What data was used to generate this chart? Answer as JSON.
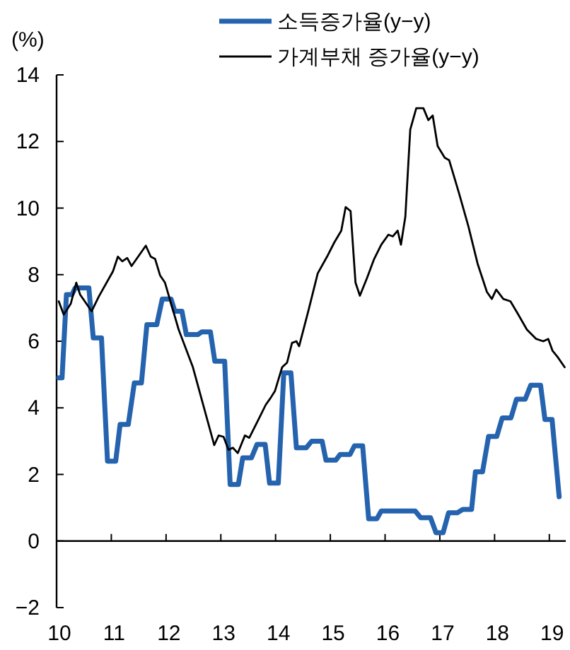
{
  "chart_data": {
    "type": "line",
    "ylabel": "(%)",
    "xlim": [
      10,
      19.3
    ],
    "xticks": [
      10,
      11,
      12,
      13,
      14,
      15,
      16,
      17,
      18,
      19
    ],
    "ylim": [
      -2,
      14
    ],
    "yticks": [
      -2,
      0,
      2,
      4,
      6,
      8,
      10,
      12,
      14
    ],
    "legend": "top",
    "series": [
      {
        "name": "소득증가율(y−y)",
        "color": "#2563ae",
        "x": [
          10.04,
          10.1,
          10.18,
          10.28,
          10.34,
          10.59,
          10.67,
          10.82,
          10.93,
          11.08,
          11.16,
          11.31,
          11.42,
          11.55,
          11.65,
          11.83,
          11.93,
          12.09,
          12.16,
          12.29,
          12.37,
          12.58,
          12.65,
          12.81,
          12.89,
          13.07,
          13.17,
          13.32,
          13.4,
          13.56,
          13.66,
          13.81,
          13.89,
          14.05,
          14.15,
          14.28,
          14.38,
          14.56,
          14.66,
          14.85,
          14.92,
          15.1,
          15.18,
          15.36,
          15.44,
          15.59,
          15.7,
          15.85,
          15.93,
          16.55,
          16.65,
          16.83,
          16.93,
          17.06,
          17.16,
          17.32,
          17.42,
          17.58,
          17.65,
          17.78,
          17.89,
          18.04,
          18.14,
          18.3,
          18.4,
          18.56,
          18.66,
          18.84,
          18.92,
          19.05,
          19.18
        ],
        "values": [
          4.9,
          4.9,
          7.4,
          7.4,
          7.6,
          7.6,
          6.1,
          6.1,
          2.4,
          2.4,
          3.5,
          3.5,
          4.75,
          4.75,
          6.5,
          6.5,
          7.27,
          7.27,
          6.9,
          6.9,
          6.2,
          6.2,
          6.28,
          6.28,
          5.4,
          5.4,
          1.7,
          1.7,
          2.5,
          2.5,
          2.9,
          2.9,
          1.74,
          1.74,
          5.05,
          5.05,
          2.8,
          2.8,
          3.0,
          3.0,
          2.43,
          2.43,
          2.6,
          2.6,
          2.86,
          2.86,
          0.67,
          0.67,
          0.9,
          0.9,
          0.7,
          0.7,
          0.25,
          0.25,
          0.85,
          0.85,
          0.95,
          0.95,
          2.08,
          2.08,
          3.14,
          3.14,
          3.7,
          3.7,
          4.26,
          4.26,
          4.68,
          4.68,
          3.65,
          3.65,
          1.33
        ]
      },
      {
        "name": "가계부채 증가율(y−y)",
        "color": "#000000",
        "x": [
          10.04,
          10.13,
          10.26,
          10.36,
          10.43,
          10.64,
          10.77,
          11.03,
          11.12,
          11.2,
          11.29,
          11.37,
          11.63,
          11.72,
          11.8,
          11.89,
          11.98,
          12.23,
          12.49,
          12.75,
          12.88,
          12.96,
          13.05,
          13.14,
          13.22,
          13.31,
          13.44,
          13.52,
          13.69,
          13.82,
          13.91,
          13.99,
          14.12,
          14.21,
          14.3,
          14.38,
          14.43,
          14.6,
          14.77,
          14.94,
          15.07,
          15.2,
          15.28,
          15.37,
          15.46,
          15.54,
          15.67,
          15.8,
          15.93,
          16.06,
          16.14,
          16.23,
          16.29,
          16.37,
          16.46,
          16.57,
          16.7,
          16.79,
          16.87,
          16.96,
          17.09,
          17.17,
          17.35,
          17.52,
          17.69,
          17.86,
          17.95,
          18.03,
          18.16,
          18.29,
          18.42,
          18.59,
          18.76,
          18.89,
          18.98,
          19.06,
          19.15,
          19.28
        ],
        "values": [
          7.2,
          6.8,
          7.13,
          7.76,
          7.4,
          6.9,
          7.34,
          8.1,
          8.54,
          8.4,
          8.5,
          8.26,
          8.87,
          8.54,
          8.47,
          7.98,
          7.76,
          6.35,
          5.22,
          3.66,
          2.88,
          3.17,
          3.13,
          2.74,
          2.8,
          2.64,
          3.17,
          3.1,
          3.66,
          4.09,
          4.3,
          4.51,
          5.22,
          5.36,
          5.95,
          6.0,
          5.85,
          6.92,
          8.04,
          8.54,
          8.96,
          9.32,
          10.03,
          9.91,
          7.76,
          7.37,
          7.9,
          8.47,
          8.9,
          9.2,
          9.15,
          9.32,
          8.9,
          9.74,
          12.36,
          13.0,
          13.0,
          12.64,
          12.78,
          11.86,
          11.51,
          11.44,
          10.45,
          9.46,
          8.33,
          7.48,
          7.27,
          7.55,
          7.27,
          7.2,
          6.84,
          6.35,
          6.07,
          6.0,
          6.07,
          5.71,
          5.53,
          5.22
        ]
      }
    ]
  }
}
